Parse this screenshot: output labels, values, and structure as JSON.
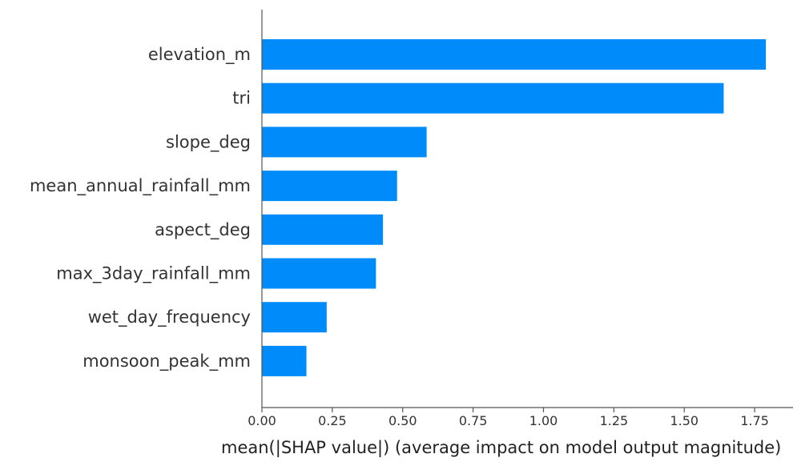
{
  "chart_data": {
    "type": "bar",
    "orientation": "horizontal",
    "categories": [
      "elevation_m",
      "tri",
      "slope_deg",
      "mean_annual_rainfall_mm",
      "aspect_deg",
      "max_3day_rainfall_mm",
      "wet_day_frequency",
      "monsoon_peak_mm"
    ],
    "values": [
      1.79,
      1.64,
      0.585,
      0.48,
      0.43,
      0.405,
      0.23,
      0.158
    ],
    "title": "",
    "xlabel": "mean(|SHAP value|) (average impact on model output magnitude)",
    "ylabel": "",
    "xlim": [
      0,
      1.88
    ],
    "x_ticks": [
      "0.00",
      "0.25",
      "0.50",
      "0.75",
      "1.00",
      "1.25",
      "1.50",
      "1.75"
    ],
    "grid": false,
    "bar_color": "#008bfb",
    "axis_color": "#555555"
  }
}
